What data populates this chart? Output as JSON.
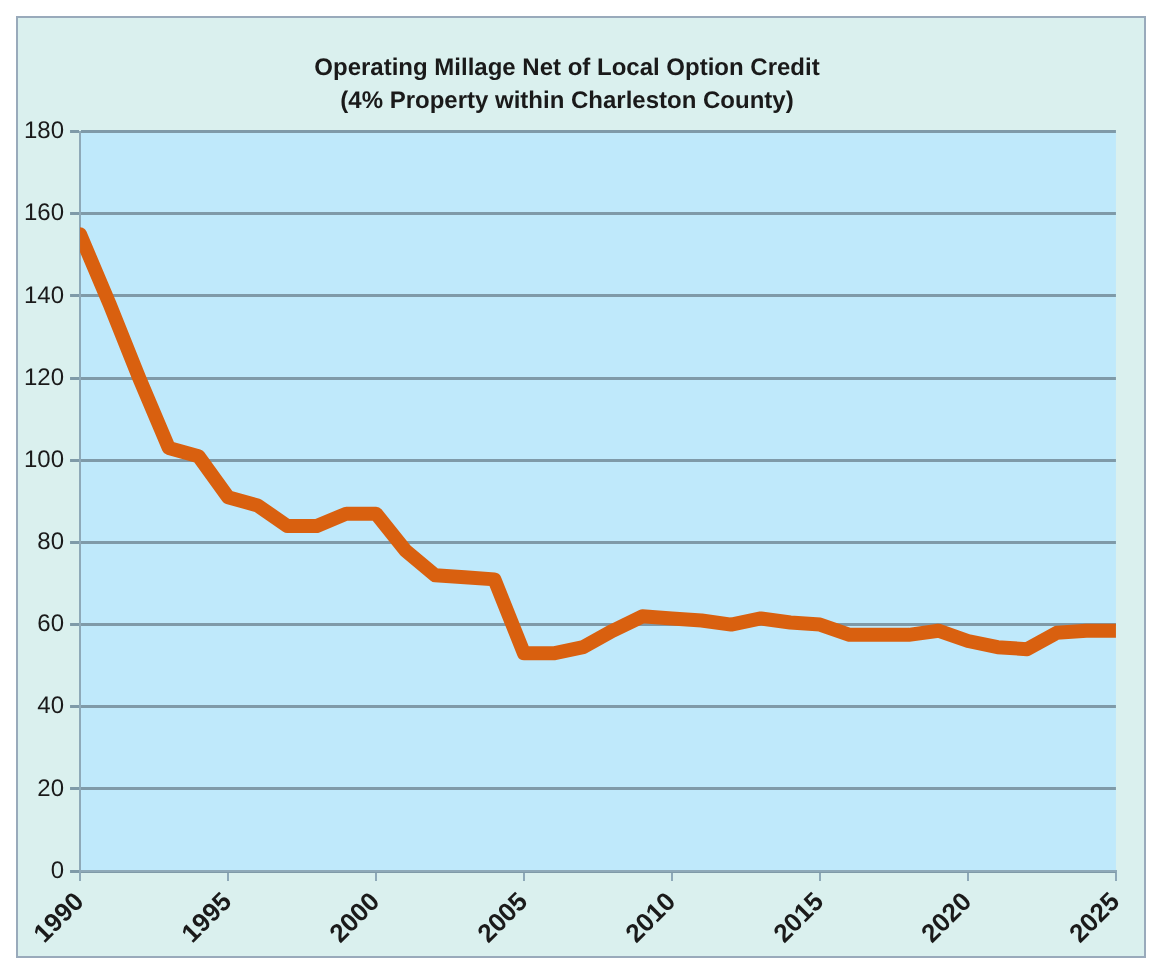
{
  "chart_data": {
    "type": "line",
    "title": "Operating Millage Net of Local Option Credit",
    "subtitle": "(4% Property within Charleston County)",
    "x": [
      1990,
      1991,
      1992,
      1993,
      1994,
      1995,
      1996,
      1997,
      1998,
      1999,
      2000,
      2001,
      2002,
      2003,
      2004,
      2005,
      2006,
      2007,
      2008,
      2009,
      2010,
      2011,
      2012,
      2013,
      2014,
      2015,
      2016,
      2017,
      2018,
      2019,
      2020,
      2021,
      2022,
      2023,
      2024,
      2025
    ],
    "series": [
      {
        "color": "#d9600f",
        "values": [
          155,
          138,
          120,
          103,
          101,
          91,
          89,
          84,
          84,
          87,
          87,
          78,
          72,
          71.5,
          71,
          53,
          53,
          54.5,
          58.5,
          62,
          61.5,
          61,
          60,
          61.5,
          60.5,
          60,
          57.5,
          57.5,
          57.5,
          58.5,
          56,
          54.5,
          54,
          58,
          58.5,
          58.5
        ]
      }
    ],
    "xlim": [
      1990,
      2025
    ],
    "xticks": [
      1990,
      1995,
      2000,
      2005,
      2010,
      2015,
      2020,
      2025
    ],
    "ylim": [
      0,
      180
    ],
    "yticks": [
      0,
      20,
      40,
      60,
      80,
      100,
      120,
      140,
      160,
      180
    ],
    "grid": "y",
    "legend": false,
    "marker": "none",
    "line_style": "solid"
  }
}
